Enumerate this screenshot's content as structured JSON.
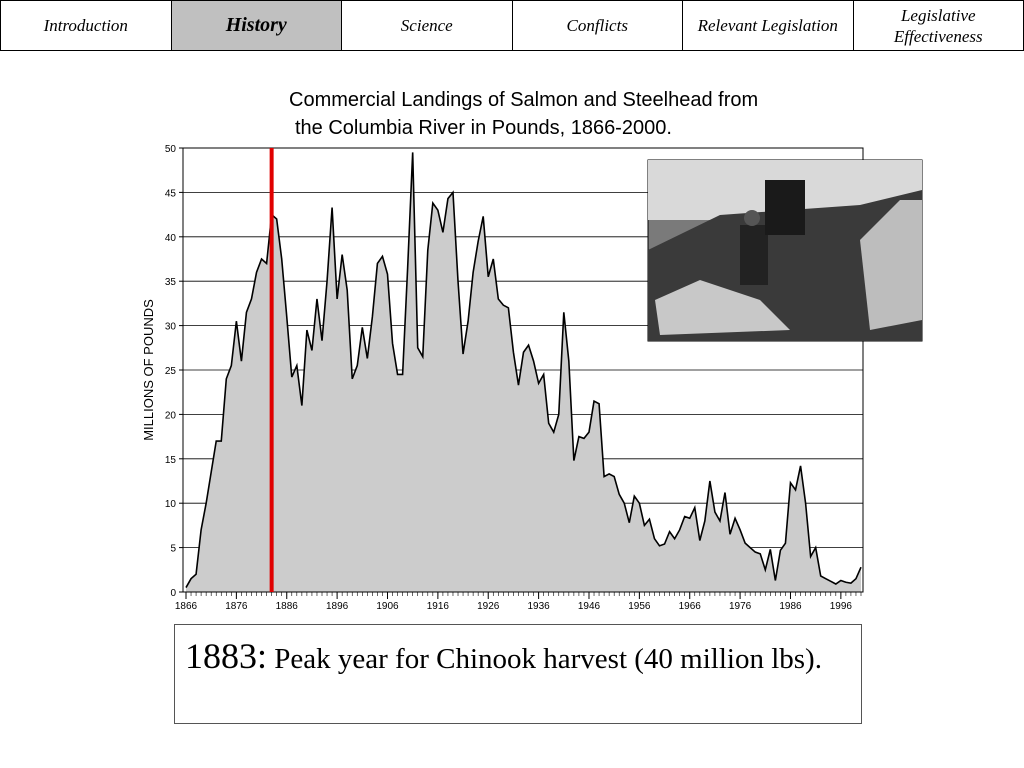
{
  "nav": {
    "tabs": [
      "Introduction",
      "History",
      "Science",
      "Conflicts",
      "Relevant Legislation",
      "Legislative Effectiveness"
    ],
    "active": 1
  },
  "chart_data": {
    "type": "area",
    "title": [
      "Commercial Landings of Salmon and Steelhead from",
      "the Columbia River in Pounds, 1866-2000."
    ],
    "ylabel": "MILLIONS OF POUNDS",
    "x": [
      1866,
      1867,
      1868,
      1869,
      1870,
      1871,
      1872,
      1873,
      1874,
      1875,
      1876,
      1877,
      1878,
      1879,
      1880,
      1881,
      1882,
      1883,
      1884,
      1885,
      1886,
      1887,
      1888,
      1889,
      1890,
      1891,
      1892,
      1893,
      1894,
      1895,
      1896,
      1897,
      1898,
      1899,
      1900,
      1901,
      1902,
      1903,
      1904,
      1905,
      1906,
      1907,
      1908,
      1909,
      1910,
      1911,
      1912,
      1913,
      1914,
      1915,
      1916,
      1917,
      1918,
      1919,
      1920,
      1921,
      1922,
      1923,
      1924,
      1925,
      1926,
      1927,
      1928,
      1929,
      1930,
      1931,
      1932,
      1933,
      1934,
      1935,
      1936,
      1937,
      1938,
      1939,
      1940,
      1941,
      1942,
      1943,
      1944,
      1945,
      1946,
      1947,
      1948,
      1949,
      1950,
      1951,
      1952,
      1953,
      1954,
      1955,
      1956,
      1957,
      1958,
      1959,
      1960,
      1961,
      1962,
      1963,
      1964,
      1965,
      1966,
      1967,
      1968,
      1969,
      1970,
      1971,
      1972,
      1973,
      1974,
      1975,
      1976,
      1977,
      1978,
      1979,
      1980,
      1981,
      1982,
      1983,
      1984,
      1985,
      1986,
      1987,
      1988,
      1989,
      1990,
      1991,
      1992,
      1993,
      1994,
      1995,
      1996,
      1997,
      1998,
      1999,
      2000
    ],
    "values": [
      0.5,
      1.5,
      2,
      7,
      10,
      13.5,
      17,
      17,
      24,
      25.5,
      30.5,
      26,
      31.5,
      33,
      36,
      37.5,
      37,
      42.5,
      42,
      37.5,
      31,
      24.2,
      25.5,
      21,
      29.5,
      27.2,
      33,
      28.3,
      35,
      43.3,
      33,
      38,
      34,
      24,
      25.5,
      29.8,
      26.3,
      31,
      37,
      37.8,
      35.8,
      28,
      24.5,
      24.5,
      36.5,
      49.5,
      27.5,
      26.5,
      38.5,
      43.8,
      43,
      40.5,
      44.3,
      45,
      35,
      26.8,
      30.5,
      36,
      39.5,
      42.3,
      35.5,
      37.5,
      33,
      32.3,
      32,
      27,
      23.3,
      27,
      27.8,
      26,
      23.5,
      24.5,
      19,
      18,
      20,
      31.5,
      26,
      14.8,
      17.5,
      17.3,
      18,
      21.5,
      21.2,
      13,
      13.3,
      13,
      11,
      10,
      7.8,
      10.8,
      10,
      7.5,
      8.2,
      6,
      5.2,
      5.4,
      6.8,
      6,
      7,
      8.5,
      8.3,
      9.5,
      5.8,
      8,
      12.5,
      9,
      8,
      11.2,
      6.5,
      8.3,
      7,
      5.5,
      5,
      4.5,
      4.3,
      2.5,
      4.8,
      1.3,
      4.7,
      5.5,
      12.3,
      11.5,
      14.2,
      10,
      4,
      5,
      1.8,
      1.5,
      1.2,
      0.9,
      1.3,
      1.1,
      1,
      1.5,
      2.8
    ],
    "color": "#cccccc",
    "xlim": [
      1866,
      2000
    ],
    "xticks": [
      1866,
      1876,
      1886,
      1896,
      1906,
      1916,
      1926,
      1936,
      1946,
      1956,
      1966,
      1976,
      1986,
      1996
    ],
    "ylim": [
      0,
      50
    ],
    "yticks": [
      0,
      5,
      10,
      15,
      20,
      25,
      30,
      35,
      40,
      45,
      50
    ],
    "grid": true,
    "marker_x": 1883,
    "marker_color": "#e00000"
  },
  "caption": {
    "lead": "1883:",
    "text": "Peak year for Chinook harvest (40 million lbs)."
  }
}
